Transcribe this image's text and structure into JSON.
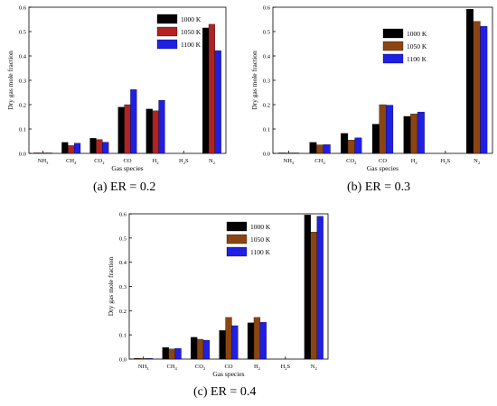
{
  "figure": {
    "captions": [
      "(a) ER = 0.2",
      "(b) ER = 0.3",
      "(c) ER = 0.4"
    ]
  },
  "chart_data": [
    {
      "type": "bar",
      "panel": "(a) ER = 0.2",
      "xlabel": "Gas species",
      "ylabel": "Dry gas mole fraction",
      "ylim": [
        0,
        0.6
      ],
      "yticks": [
        "0.0",
        "0.1",
        "0.2",
        "0.3",
        "0.4",
        "0.5",
        "0.6"
      ],
      "categories": [
        {
          "base": "NH",
          "sub": "3"
        },
        {
          "base": "CH",
          "sub": "4"
        },
        {
          "base": "CO",
          "sub": "2"
        },
        {
          "base": "CO",
          "sub": ""
        },
        {
          "base": "H",
          "sub": "2"
        },
        {
          "base": "H",
          "sub": "2",
          "tail": "S"
        },
        {
          "base": "N",
          "sub": "2"
        }
      ],
      "legend_position": "top-right",
      "series": [
        {
          "name": "1000 K",
          "color": "#000000",
          "values": [
            0.002,
            0.045,
            0.062,
            0.19,
            0.182,
            0.0,
            0.515
          ]
        },
        {
          "name": "1050 K",
          "color": "#b22222",
          "values": [
            0.002,
            0.032,
            0.057,
            0.2,
            0.175,
            0.0,
            0.53
          ]
        },
        {
          "name": "1100 K",
          "color": "#1f1fe6",
          "values": [
            0.002,
            0.042,
            0.046,
            0.262,
            0.218,
            0.0,
            0.422
          ]
        }
      ]
    },
    {
      "type": "bar",
      "panel": "(b) ER = 0.3",
      "xlabel": "Gas species",
      "ylabel": "Dry gas mole fraction",
      "ylim": [
        0,
        0.6
      ],
      "yticks": [
        "0.0",
        "0.1",
        "0.2",
        "0.3",
        "0.4",
        "0.5",
        "0.6"
      ],
      "categories": [
        {
          "base": "NH",
          "sub": "3"
        },
        {
          "base": "CH",
          "sub": "4"
        },
        {
          "base": "CO",
          "sub": "2"
        },
        {
          "base": "CO",
          "sub": ""
        },
        {
          "base": "H",
          "sub": "2"
        },
        {
          "base": "H",
          "sub": "2",
          "tail": "S"
        },
        {
          "base": "N",
          "sub": "2"
        }
      ],
      "legend_position": "top-center",
      "series": [
        {
          "name": "1000 K",
          "color": "#000000",
          "values": [
            0.002,
            0.045,
            0.082,
            0.12,
            0.152,
            0.0,
            0.592
          ]
        },
        {
          "name": "1050 K",
          "color": "#8b4513",
          "values": [
            0.002,
            0.035,
            0.055,
            0.2,
            0.162,
            0.0,
            0.542
          ]
        },
        {
          "name": "1100 K",
          "color": "#1f1fe6",
          "values": [
            0.002,
            0.036,
            0.064,
            0.198,
            0.17,
            0.0,
            0.522
          ]
        }
      ]
    },
    {
      "type": "bar",
      "panel": "(c) ER = 0.4",
      "xlabel": "Gas species",
      "ylabel": "Dry gas mole fraction",
      "ylim": [
        0,
        0.6
      ],
      "yticks": [
        "0.0",
        "0.1",
        "0.2",
        "0.3",
        "0.4",
        "0.5",
        "0.6"
      ],
      "categories": [
        {
          "base": "NH",
          "sub": "3"
        },
        {
          "base": "CH",
          "sub": "4"
        },
        {
          "base": "CO",
          "sub": "2"
        },
        {
          "base": "CO",
          "sub": ""
        },
        {
          "base": "H",
          "sub": "2"
        },
        {
          "base": "H",
          "sub": "2",
          "tail": "S"
        },
        {
          "base": "N",
          "sub": "2"
        }
      ],
      "legend_position": "top-center",
      "series": [
        {
          "name": "1000 K",
          "color": "#000000",
          "values": [
            0.003,
            0.048,
            0.09,
            0.118,
            0.15,
            0.0,
            0.595
          ]
        },
        {
          "name": "1050 K",
          "color": "#8b4513",
          "values": [
            0.003,
            0.042,
            0.082,
            0.172,
            0.172,
            0.0,
            0.525
          ]
        },
        {
          "name": "1100 K",
          "color": "#1f1fe6",
          "values": [
            0.003,
            0.044,
            0.078,
            0.138,
            0.152,
            0.0,
            0.59
          ]
        }
      ]
    }
  ]
}
